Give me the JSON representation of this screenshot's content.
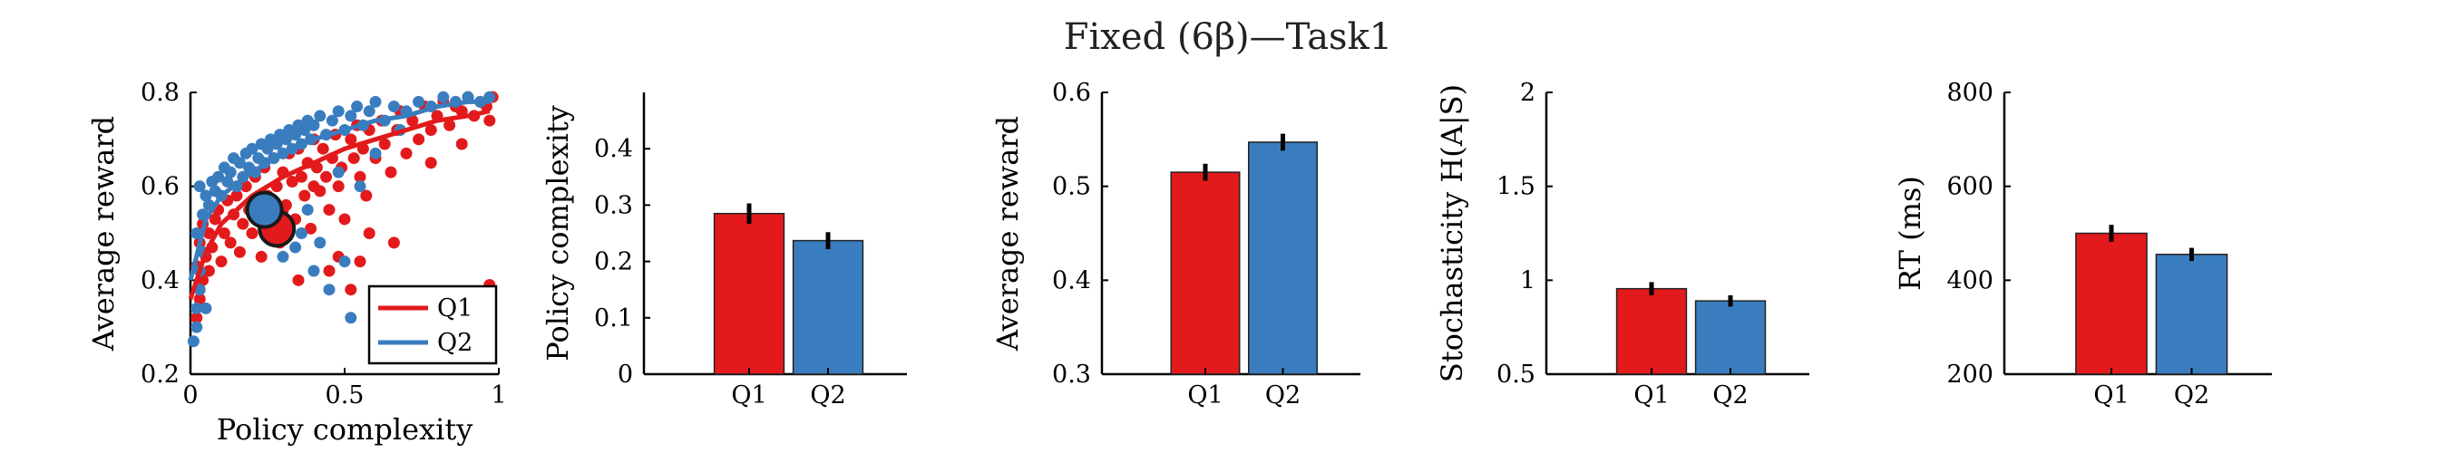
{
  "figure": {
    "title": "Fixed (6β)—Task1"
  },
  "colors": {
    "Q1": "#e31a1c",
    "Q2": "#3a7dbf",
    "axis": "#000000",
    "errorbar": "#000000",
    "marker_edge": "#1a1a1a"
  },
  "chart_data": [
    {
      "type": "scatter",
      "xlabel": "Policy complexity",
      "ylabel": "Average reward",
      "xlim": [
        0,
        1
      ],
      "ylim": [
        0.2,
        0.8
      ],
      "xticks": [
        0,
        0.5,
        1
      ],
      "xtick_labels": [
        "0",
        "0.5",
        "1"
      ],
      "yticks": [
        0.2,
        0.4,
        0.6,
        0.8
      ],
      "ytick_labels": [
        "0.2",
        "0.4",
        "0.6",
        "0.8"
      ],
      "legend": {
        "placement": "bottom-right",
        "entries": [
          "Q1",
          "Q2"
        ]
      },
      "series": [
        {
          "name": "Q1",
          "color": "#e31a1c",
          "points": [
            [
              0.02,
              0.32
            ],
            [
              0.03,
              0.36
            ],
            [
              0.04,
              0.4
            ],
            [
              0.02,
              0.43
            ],
            [
              0.05,
              0.45
            ],
            [
              0.03,
              0.48
            ],
            [
              0.06,
              0.5
            ],
            [
              0.04,
              0.52
            ],
            [
              0.07,
              0.47
            ],
            [
              0.08,
              0.53
            ],
            [
              0.06,
              0.42
            ],
            [
              0.09,
              0.55
            ],
            [
              0.1,
              0.44
            ],
            [
              0.11,
              0.5
            ],
            [
              0.12,
              0.57
            ],
            [
              0.13,
              0.48
            ],
            [
              0.14,
              0.54
            ],
            [
              0.15,
              0.58
            ],
            [
              0.16,
              0.46
            ],
            [
              0.17,
              0.52
            ],
            [
              0.18,
              0.6
            ],
            [
              0.19,
              0.55
            ],
            [
              0.2,
              0.5
            ],
            [
              0.21,
              0.62
            ],
            [
              0.22,
              0.57
            ],
            [
              0.23,
              0.45
            ],
            [
              0.24,
              0.64
            ],
            [
              0.25,
              0.58
            ],
            [
              0.26,
              0.52
            ],
            [
              0.27,
              0.66
            ],
            [
              0.28,
              0.6
            ],
            [
              0.29,
              0.48
            ],
            [
              0.3,
              0.63
            ],
            [
              0.31,
              0.56
            ],
            [
              0.32,
              0.67
            ],
            [
              0.33,
              0.61
            ],
            [
              0.34,
              0.53
            ],
            [
              0.35,
              0.68
            ],
            [
              0.36,
              0.62
            ],
            [
              0.37,
              0.58
            ],
            [
              0.38,
              0.65
            ],
            [
              0.39,
              0.51
            ],
            [
              0.4,
              0.7
            ],
            [
              0.41,
              0.64
            ],
            [
              0.42,
              0.59
            ],
            [
              0.43,
              0.68
            ],
            [
              0.44,
              0.62
            ],
            [
              0.45,
              0.55
            ],
            [
              0.46,
              0.66
            ],
            [
              0.47,
              0.71
            ],
            [
              0.48,
              0.6
            ],
            [
              0.49,
              0.64
            ],
            [
              0.5,
              0.53
            ],
            [
              0.52,
              0.7
            ],
            [
              0.53,
              0.66
            ],
            [
              0.54,
              0.73
            ],
            [
              0.55,
              0.62
            ],
            [
              0.56,
              0.68
            ],
            [
              0.57,
              0.58
            ],
            [
              0.58,
              0.72
            ],
            [
              0.6,
              0.66
            ],
            [
              0.62,
              0.74
            ],
            [
              0.63,
              0.69
            ],
            [
              0.65,
              0.63
            ],
            [
              0.67,
              0.72
            ],
            [
              0.68,
              0.76
            ],
            [
              0.7,
              0.67
            ],
            [
              0.72,
              0.74
            ],
            [
              0.74,
              0.7
            ],
            [
              0.76,
              0.77
            ],
            [
              0.78,
              0.72
            ],
            [
              0.8,
              0.75
            ],
            [
              0.82,
              0.78
            ],
            [
              0.84,
              0.73
            ],
            [
              0.86,
              0.77
            ],
            [
              0.88,
              0.76
            ],
            [
              0.9,
              0.79
            ],
            [
              0.92,
              0.75
            ],
            [
              0.94,
              0.78
            ],
            [
              0.96,
              0.77
            ],
            [
              0.97,
              0.74
            ],
            [
              0.98,
              0.79
            ],
            [
              0.35,
              0.4
            ],
            [
              0.45,
              0.42
            ],
            [
              0.55,
              0.44
            ],
            [
              0.6,
              0.36
            ],
            [
              0.7,
              0.3
            ],
            [
              0.52,
              0.38
            ],
            [
              0.48,
              0.45
            ],
            [
              0.58,
              0.5
            ],
            [
              0.66,
              0.48
            ],
            [
              0.78,
              0.65
            ],
            [
              0.88,
              0.69
            ],
            [
              0.97,
              0.39
            ],
            [
              0.4,
              0.6
            ],
            [
              0.3,
              0.55
            ]
          ],
          "fit_curve": [
            [
              0.0,
              0.36
            ],
            [
              0.05,
              0.46
            ],
            [
              0.1,
              0.52
            ],
            [
              0.2,
              0.58
            ],
            [
              0.3,
              0.62
            ],
            [
              0.4,
              0.65
            ],
            [
              0.5,
              0.68
            ],
            [
              0.6,
              0.7
            ],
            [
              0.7,
              0.72
            ],
            [
              0.8,
              0.74
            ],
            [
              0.9,
              0.75
            ],
            [
              0.97,
              0.76
            ]
          ],
          "mean_point": [
            0.28,
            0.51
          ]
        },
        {
          "name": "Q2",
          "color": "#3a7dbf",
          "points": [
            [
              0.01,
              0.27
            ],
            [
              0.02,
              0.3
            ],
            [
              0.02,
              0.34
            ],
            [
              0.03,
              0.38
            ],
            [
              0.03,
              0.42
            ],
            [
              0.04,
              0.46
            ],
            [
              0.02,
              0.5
            ],
            [
              0.04,
              0.54
            ],
            [
              0.05,
              0.58
            ],
            [
              0.03,
              0.6
            ],
            [
              0.06,
              0.56
            ],
            [
              0.07,
              0.61
            ],
            [
              0.08,
              0.59
            ],
            [
              0.09,
              0.62
            ],
            [
              0.1,
              0.58
            ],
            [
              0.11,
              0.64
            ],
            [
              0.12,
              0.61
            ],
            [
              0.13,
              0.63
            ],
            [
              0.14,
              0.66
            ],
            [
              0.15,
              0.6
            ],
            [
              0.16,
              0.65
            ],
            [
              0.17,
              0.62
            ],
            [
              0.18,
              0.67
            ],
            [
              0.19,
              0.64
            ],
            [
              0.2,
              0.68
            ],
            [
              0.21,
              0.63
            ],
            [
              0.22,
              0.66
            ],
            [
              0.23,
              0.69
            ],
            [
              0.24,
              0.65
            ],
            [
              0.25,
              0.68
            ],
            [
              0.26,
              0.7
            ],
            [
              0.27,
              0.66
            ],
            [
              0.28,
              0.69
            ],
            [
              0.29,
              0.71
            ],
            [
              0.3,
              0.67
            ],
            [
              0.31,
              0.7
            ],
            [
              0.32,
              0.72
            ],
            [
              0.33,
              0.68
            ],
            [
              0.34,
              0.71
            ],
            [
              0.35,
              0.73
            ],
            [
              0.36,
              0.69
            ],
            [
              0.37,
              0.72
            ],
            [
              0.38,
              0.74
            ],
            [
              0.39,
              0.7
            ],
            [
              0.4,
              0.73
            ],
            [
              0.42,
              0.75
            ],
            [
              0.44,
              0.71
            ],
            [
              0.46,
              0.74
            ],
            [
              0.48,
              0.76
            ],
            [
              0.5,
              0.72
            ],
            [
              0.52,
              0.75
            ],
            [
              0.54,
              0.77
            ],
            [
              0.56,
              0.73
            ],
            [
              0.58,
              0.76
            ],
            [
              0.6,
              0.78
            ],
            [
              0.63,
              0.74
            ],
            [
              0.66,
              0.77
            ],
            [
              0.7,
              0.76
            ],
            [
              0.74,
              0.78
            ],
            [
              0.78,
              0.77
            ],
            [
              0.82,
              0.79
            ],
            [
              0.86,
              0.78
            ],
            [
              0.9,
              0.79
            ],
            [
              0.94,
              0.78
            ],
            [
              0.97,
              0.79
            ],
            [
              0.3,
              0.45
            ],
            [
              0.36,
              0.5
            ],
            [
              0.4,
              0.42
            ],
            [
              0.45,
              0.38
            ],
            [
              0.5,
              0.44
            ],
            [
              0.42,
              0.48
            ],
            [
              0.38,
              0.55
            ],
            [
              0.48,
              0.63
            ],
            [
              0.55,
              0.6
            ],
            [
              0.62,
              0.25
            ],
            [
              0.52,
              0.32
            ],
            [
              0.6,
              0.67
            ],
            [
              0.68,
              0.72
            ],
            [
              0.34,
              0.47
            ],
            [
              0.05,
              0.34
            ]
          ],
          "fit_curve": [
            [
              0.0,
              0.4
            ],
            [
              0.05,
              0.53
            ],
            [
              0.1,
              0.58
            ],
            [
              0.2,
              0.63
            ],
            [
              0.3,
              0.67
            ],
            [
              0.4,
              0.7
            ],
            [
              0.5,
              0.72
            ],
            [
              0.6,
              0.74
            ],
            [
              0.7,
              0.75
            ],
            [
              0.8,
              0.77
            ],
            [
              0.9,
              0.78
            ],
            [
              0.97,
              0.78
            ]
          ],
          "mean_point": [
            0.24,
            0.55
          ]
        }
      ]
    },
    {
      "type": "bar",
      "categories": [
        "Q1",
        "Q2"
      ],
      "values": [
        0.285,
        0.237
      ],
      "errors": [
        0.018,
        0.015
      ],
      "ylabel": "Policy complexity",
      "ylim": [
        0,
        0.5
      ],
      "yticks": [
        0,
        0.1,
        0.2,
        0.3,
        0.4
      ],
      "ytick_labels": [
        "0",
        "0.1",
        "0.2",
        "0.3",
        "0.4"
      ]
    },
    {
      "type": "bar",
      "categories": [
        "Q1",
        "Q2"
      ],
      "values": [
        0.515,
        0.547
      ],
      "errors": [
        0.009,
        0.009
      ],
      "ylabel": "Average reward",
      "ylim": [
        0.3,
        0.6
      ],
      "yticks": [
        0.3,
        0.4,
        0.5,
        0.6
      ],
      "ytick_labels": [
        "0.3",
        "0.4",
        "0.5",
        "0.6"
      ]
    },
    {
      "type": "bar",
      "categories": [
        "Q1",
        "Q2"
      ],
      "values": [
        0.955,
        0.89
      ],
      "errors": [
        0.035,
        0.03
      ],
      "ylabel": "Stochasticity H(A|S)",
      "ylim": [
        0.5,
        2
      ],
      "yticks": [
        0.5,
        1,
        1.5,
        2
      ],
      "ytick_labels": [
        "0.5",
        "1",
        "1.5",
        "2"
      ]
    },
    {
      "type": "bar",
      "categories": [
        "Q1",
        "Q2"
      ],
      "values": [
        500,
        455
      ],
      "errors": [
        18,
        14
      ],
      "ylabel": "RT (ms)",
      "ylim": [
        200,
        800
      ],
      "yticks": [
        200,
        400,
        600,
        800
      ],
      "ytick_labels": [
        "200",
        "400",
        "600",
        "800"
      ]
    }
  ]
}
